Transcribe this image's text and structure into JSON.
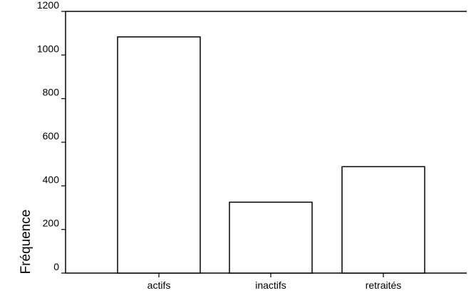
{
  "chart_data": {
    "type": "bar",
    "categories": [
      "actifs",
      "inactifs",
      "retraités"
    ],
    "values": [
      1083,
      325,
      488
    ],
    "title": "",
    "xlabel": "",
    "ylabel": "Fréquence",
    "ylim": [
      0,
      1200
    ],
    "yticks": [
      0,
      200,
      400,
      600,
      800,
      1000,
      1200
    ],
    "grid": false,
    "bar_fill": "#ffffff",
    "bar_stroke": "#000000"
  }
}
